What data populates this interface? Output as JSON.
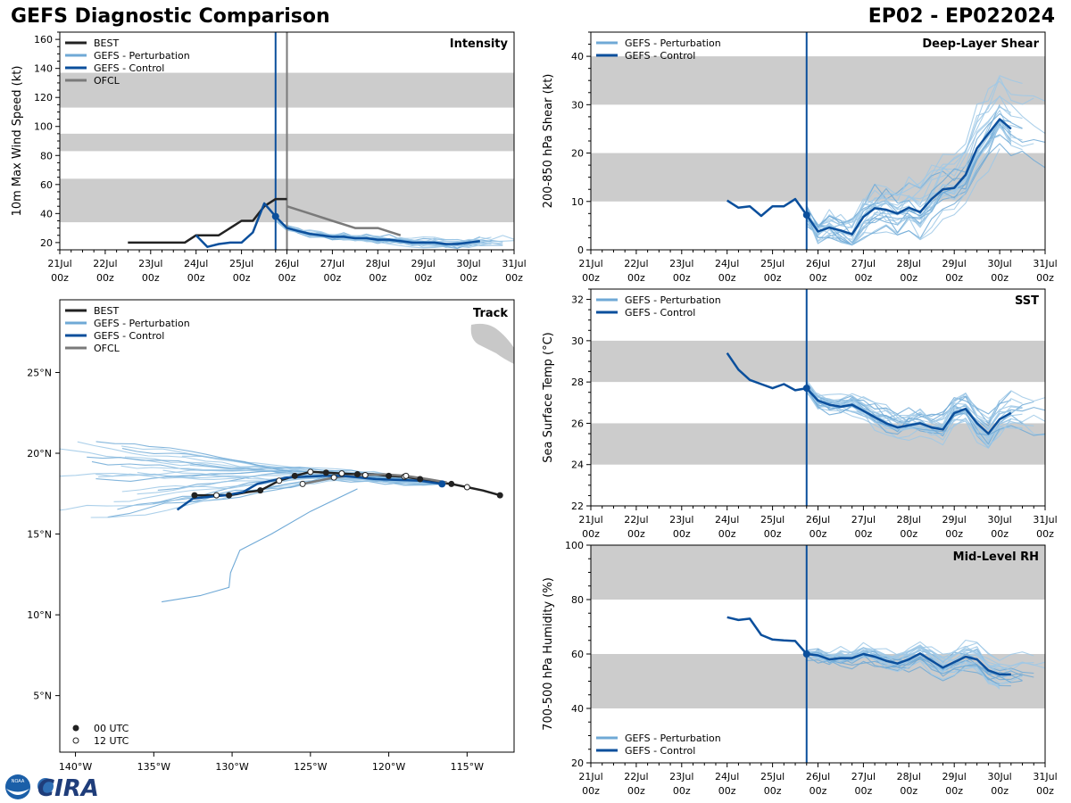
{
  "header": {
    "title": "GEFS Diagnostic Comparison",
    "storm_id": "EP02 - EP022024"
  },
  "logo": {
    "text": "CIRA",
    "seal_text": "NOAA"
  },
  "colors": {
    "best": "#222222",
    "perturbation": "#6fa9d6",
    "perturbation_thin": "#9ec8e6",
    "control": "#0b4f9c",
    "ofcl": "#7a7a7a",
    "shade": "#cccccc",
    "init_line": "#0b4f9c",
    "land": "#c8c8c8"
  },
  "chart_data": [
    {
      "id": "intensity",
      "type": "line",
      "title": "Intensity",
      "ylabel": "10m Max Wind Speed (kt)",
      "x_unit": "days since 21Jul 00z",
      "xlim": [
        0,
        10
      ],
      "ylim": [
        15,
        165
      ],
      "yticks": [
        20,
        40,
        60,
        80,
        100,
        120,
        140,
        160
      ],
      "xtick_labels": [
        [
          "21Jul",
          "00z"
        ],
        [
          "22Jul",
          "00z"
        ],
        [
          "23Jul",
          "00z"
        ],
        [
          "24Jul",
          "00z"
        ],
        [
          "25Jul",
          "00z"
        ],
        [
          "26Jul",
          "00z"
        ],
        [
          "27Jul",
          "00z"
        ],
        [
          "28Jul",
          "00z"
        ],
        [
          "29Jul",
          "00z"
        ],
        [
          "30Jul",
          "00z"
        ],
        [
          "31Jul",
          "00z"
        ]
      ],
      "shaded_bands": [
        [
          34,
          64
        ],
        [
          83,
          95
        ],
        [
          113,
          137
        ]
      ],
      "init_time": 4.75,
      "ofcl_time": 5.0,
      "legend": [
        "BEST",
        "GEFS - Perturbation",
        "GEFS - Control",
        "OFCL"
      ],
      "series": [
        {
          "name": "BEST",
          "x": [
            1.5,
            1.75,
            2,
            2.25,
            2.5,
            2.75,
            3,
            3.25,
            3.5,
            3.75,
            4,
            4.25,
            4.5,
            4.75,
            5
          ],
          "y": [
            20,
            20,
            20,
            20,
            20,
            20,
            25,
            25,
            25,
            30,
            35,
            35,
            45,
            50,
            50
          ]
        },
        {
          "name": "OFCL",
          "x": [
            5,
            5.5,
            6,
            6.5,
            7,
            7.5
          ],
          "y": [
            45,
            40,
            35,
            30,
            30,
            25
          ]
        },
        {
          "name": "GEFS - Control",
          "x": [
            4.75,
            5,
            5.25,
            5.5,
            5.75,
            6,
            6.25,
            6.5,
            6.75,
            7,
            7.25,
            7.5,
            7.75,
            8,
            8.25,
            8.5,
            8.75,
            9,
            9.25
          ],
          "y": [
            38,
            30,
            28,
            26,
            25,
            24,
            24,
            23,
            23,
            22,
            22,
            21,
            20,
            20,
            20,
            19,
            19,
            20,
            21
          ],
          "x_extra": [
            3,
            3.25,
            3.5,
            3.75,
            4,
            4.25,
            4.5,
            4.75
          ],
          "y_extra": [
            25,
            17,
            19,
            20,
            20,
            27,
            47,
            38
          ]
        }
      ]
    },
    {
      "id": "shear",
      "type": "line",
      "title": "Deep-Layer Shear",
      "ylabel": "200-850 hPa Shear (kt)",
      "xlim": [
        0,
        10
      ],
      "ylim": [
        0,
        45
      ],
      "yticks": [
        0,
        10,
        20,
        30,
        40
      ],
      "xtick_labels": [
        [
          "21Jul",
          "00z"
        ],
        [
          "22Jul",
          "00z"
        ],
        [
          "23Jul",
          "00z"
        ],
        [
          "24Jul",
          "00z"
        ],
        [
          "25Jul",
          "00z"
        ],
        [
          "26Jul",
          "00z"
        ],
        [
          "27Jul",
          "00z"
        ],
        [
          "28Jul",
          "00z"
        ],
        [
          "29Jul",
          "00z"
        ],
        [
          "30Jul",
          "00z"
        ],
        [
          "31Jul",
          "00z"
        ]
      ],
      "shaded_bands": [
        [
          10,
          20
        ],
        [
          30,
          40
        ]
      ],
      "init_time": 4.75,
      "legend": [
        "GEFS - Perturbation",
        "GEFS - Control"
      ],
      "series": [
        {
          "name": "GEFS - Control",
          "x": [
            3,
            3.25,
            3.5,
            3.75,
            4,
            4.25,
            4.5,
            4.75,
            5,
            5.25,
            5.5,
            5.75,
            6,
            6.25,
            6.5,
            6.75,
            7,
            7.25,
            7.5,
            7.75,
            8,
            8.25,
            8.5,
            8.75,
            9,
            9.25
          ],
          "y": [
            10.2,
            8.7,
            9,
            7,
            9,
            9,
            10.5,
            7.2,
            3.8,
            4.6,
            4,
            3.2,
            6.8,
            8.6,
            8.3,
            7.5,
            8.7,
            7.8,
            10.5,
            12.5,
            12.8,
            15.5,
            21,
            24,
            27,
            25
          ]
        }
      ]
    },
    {
      "id": "sst",
      "type": "line",
      "title": "SST",
      "ylabel": "Sea Surface Temp (°C)",
      "xlim": [
        0,
        10
      ],
      "ylim": [
        22,
        32.5
      ],
      "yticks": [
        22,
        24,
        26,
        28,
        30,
        32
      ],
      "xtick_labels": [
        [
          "21Jul",
          "00z"
        ],
        [
          "22Jul",
          "00z"
        ],
        [
          "23Jul",
          "00z"
        ],
        [
          "24Jul",
          "00z"
        ],
        [
          "25Jul",
          "00z"
        ],
        [
          "26Jul",
          "00z"
        ],
        [
          "27Jul",
          "00z"
        ],
        [
          "28Jul",
          "00z"
        ],
        [
          "29Jul",
          "00z"
        ],
        [
          "30Jul",
          "00z"
        ],
        [
          "31Jul",
          "00z"
        ]
      ],
      "shaded_bands": [
        [
          24,
          26
        ],
        [
          28,
          30
        ]
      ],
      "init_time": 4.75,
      "legend": [
        "GEFS - Perturbation",
        "GEFS - Control"
      ],
      "series": [
        {
          "name": "GEFS - Control",
          "x": [
            3,
            3.25,
            3.5,
            3.75,
            4,
            4.25,
            4.5,
            4.75,
            5,
            5.25,
            5.5,
            5.75,
            6,
            6.25,
            6.5,
            6.75,
            7,
            7.25,
            7.5,
            7.75,
            8,
            8.25,
            8.5,
            8.75,
            9,
            9.25
          ],
          "y": [
            29.4,
            28.6,
            28.1,
            27.9,
            27.7,
            27.9,
            27.6,
            27.7,
            27.1,
            26.9,
            26.8,
            26.9,
            26.6,
            26.3,
            26,
            25.8,
            25.9,
            26.0,
            25.8,
            25.7,
            26.5,
            26.7,
            26.0,
            25.5,
            26.2,
            26.5
          ]
        }
      ]
    },
    {
      "id": "rh",
      "type": "line",
      "title": "Mid-Level RH",
      "ylabel": "700-500 hPa Humidity (%)",
      "xlim": [
        0,
        10
      ],
      "ylim": [
        20,
        100
      ],
      "yticks": [
        20,
        40,
        60,
        80,
        100
      ],
      "xtick_labels": [
        [
          "21Jul",
          "00z"
        ],
        [
          "22Jul",
          "00z"
        ],
        [
          "23Jul",
          "00z"
        ],
        [
          "24Jul",
          "00z"
        ],
        [
          "25Jul",
          "00z"
        ],
        [
          "26Jul",
          "00z"
        ],
        [
          "27Jul",
          "00z"
        ],
        [
          "28Jul",
          "00z"
        ],
        [
          "29Jul",
          "00z"
        ],
        [
          "30Jul",
          "00z"
        ],
        [
          "31Jul",
          "00z"
        ]
      ],
      "shaded_bands": [
        [
          40,
          60
        ],
        [
          80,
          100
        ]
      ],
      "init_time": 4.75,
      "legend": [
        "GEFS - Perturbation",
        "GEFS - Control"
      ],
      "series": [
        {
          "name": "GEFS - Control",
          "x": [
            3,
            3.25,
            3.5,
            3.75,
            4,
            4.25,
            4.5,
            4.75,
            5,
            5.25,
            5.5,
            5.75,
            6,
            6.25,
            6.5,
            6.75,
            7,
            7.25,
            7.5,
            7.75,
            8,
            8.25,
            8.5,
            8.75,
            9,
            9.25
          ],
          "y": [
            73.5,
            72.5,
            73,
            67,
            65.3,
            65,
            64.8,
            60,
            59.5,
            58,
            58.5,
            58.5,
            60,
            59,
            57.5,
            56.5,
            58,
            60.2,
            57.5,
            55,
            57,
            59,
            58,
            54,
            52.5,
            52.5
          ]
        }
      ]
    },
    {
      "id": "track",
      "type": "scatter",
      "title": "Track",
      "xlim": [
        -141,
        -112
      ],
      "ylim": [
        1.5,
        29.5
      ],
      "xticks": [
        -140,
        -135,
        -130,
        -125,
        -120,
        -115
      ],
      "xtick_labels": [
        "140°W",
        "135°W",
        "130°W",
        "125°W",
        "120°W",
        "115°W"
      ],
      "yticks": [
        5,
        10,
        15,
        20,
        25
      ],
      "ytick_labels": [
        "5°N",
        "10°N",
        "15°N",
        "20°N",
        "25°N"
      ],
      "legend": [
        "BEST",
        "GEFS - Perturbation",
        "GEFS - Control",
        "OFCL"
      ],
      "marker_legend": [
        "00 UTC",
        "12 UTC"
      ],
      "series": [
        {
          "name": "BEST",
          "lon": [
            -112.9,
            -114,
            -115,
            -116,
            -117,
            -118,
            -119,
            -120,
            -121,
            -122,
            -123,
            -124,
            -125,
            -126,
            -127,
            -128.2,
            -129,
            -130.2,
            -131,
            -132.4
          ],
          "lat": [
            17.4,
            17.7,
            17.9,
            18.1,
            18.2,
            18.4,
            18.55,
            18.6,
            18.7,
            18.7,
            18.75,
            18.8,
            18.85,
            18.6,
            18.3,
            17.7,
            17.6,
            17.4,
            17.4,
            17.4
          ]
        },
        {
          "name": "OFCL",
          "lon": [
            -116.3,
            -117.5,
            -118.9,
            -120.3,
            -121.5,
            -122.5,
            -123.5,
            -124.5,
            -125.5
          ],
          "lat": [
            18.2,
            18.4,
            18.6,
            18.7,
            18.65,
            18.6,
            18.5,
            18.3,
            18.1
          ]
        },
        {
          "name": "GEFS - Control",
          "lon": [
            -116.6,
            -118,
            -119.4,
            -120.8,
            -121.8,
            -123,
            -124.2,
            -125.3,
            -126.5,
            -127.5,
            -128.4,
            -129.3,
            -130.4,
            -131.5,
            -132.5,
            -133.5
          ],
          "lat": [
            18.1,
            18.3,
            18.35,
            18.4,
            18.5,
            18.6,
            18.6,
            18.55,
            18.5,
            18.3,
            18.1,
            17.6,
            17.4,
            17.3,
            17.2,
            16.5
          ]
        }
      ]
    }
  ]
}
